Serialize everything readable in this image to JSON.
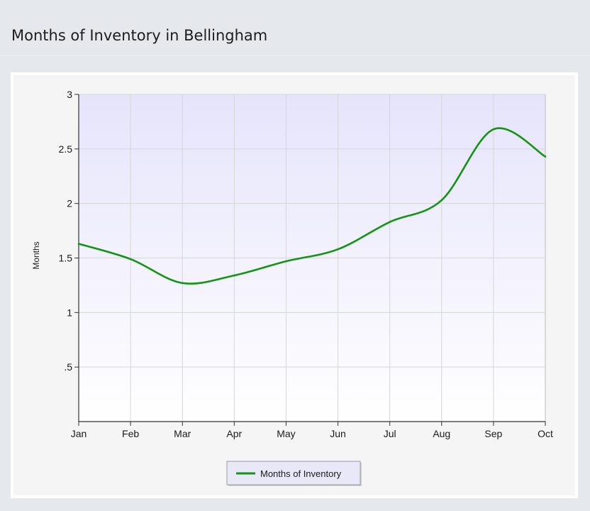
{
  "page": {
    "title": "Months of Inventory in Bellingham"
  },
  "chart_data": {
    "type": "line",
    "title": "Months of Inventory in Bellingham",
    "xlabel": "",
    "ylabel": "Months",
    "categories": [
      "Jan",
      "Feb",
      "Mar",
      "Apr",
      "May",
      "Jun",
      "Jul",
      "Aug",
      "Sep",
      "Oct"
    ],
    "series": [
      {
        "name": "Months of Inventory",
        "color": "#149414",
        "values": [
          1.63,
          1.49,
          1.27,
          1.34,
          1.47,
          1.58,
          1.83,
          2.03,
          2.68,
          2.43
        ]
      }
    ],
    "ylim": [
      0,
      3
    ],
    "yticks": [
      0.5,
      1,
      1.5,
      2,
      2.5,
      3
    ],
    "ytick_labels": [
      ".5",
      "1",
      "1.5",
      "2",
      "2.5",
      "3"
    ],
    "grid": true,
    "legend_position": "bottom-center",
    "colors": {
      "plot_top": "#e6e4fb",
      "plot_bottom": "#ffffff",
      "line": "#149414"
    }
  }
}
